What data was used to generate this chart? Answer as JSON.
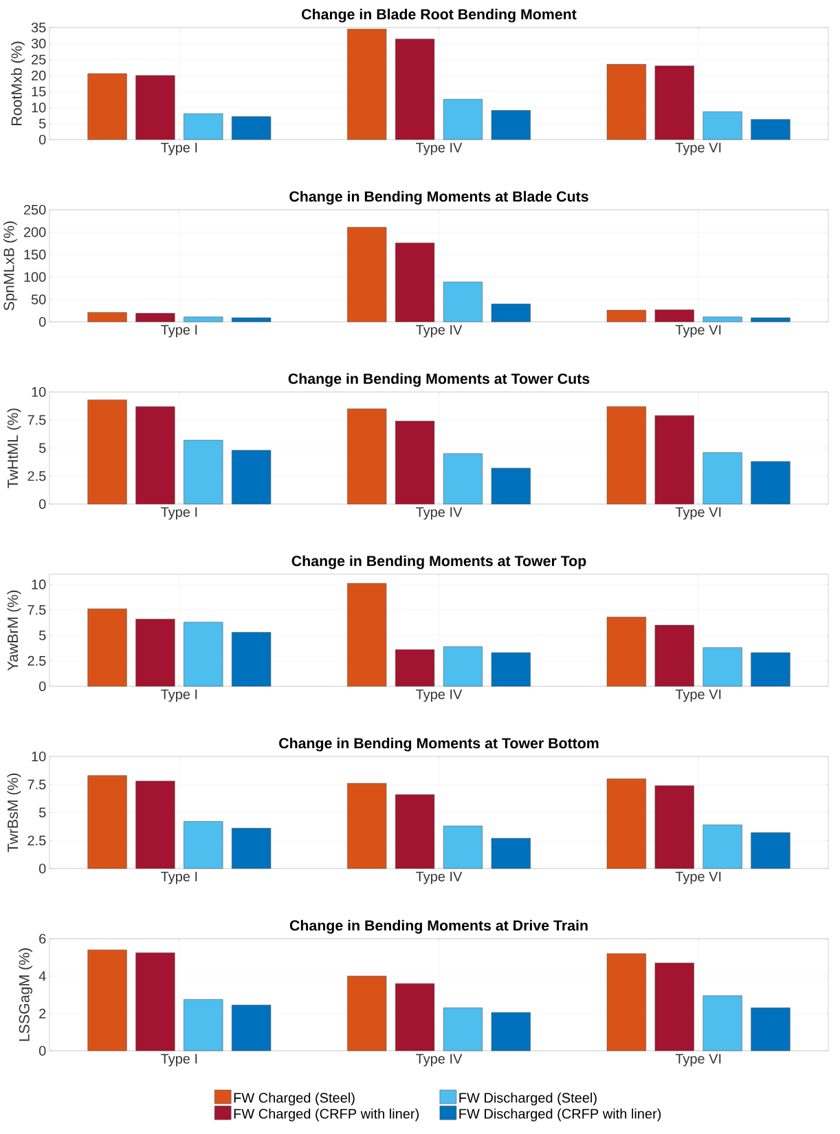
{
  "chart_data": [
    {
      "type": "bar",
      "title": "Change in Blade Root Bending Moment",
      "ylabel": "RootMxb (%)",
      "categories": [
        "Type I",
        "Type IV",
        "Type VI"
      ],
      "ylim": [
        0,
        35
      ],
      "yticks": [
        0,
        5,
        10,
        15,
        20,
        25,
        30,
        35
      ],
      "grid": true,
      "series": [
        {
          "color": "#d95319",
          "values": [
            20.6,
            34.5,
            23.5
          ]
        },
        {
          "color": "#a2142f",
          "values": [
            20.0,
            31.4,
            23.0
          ]
        },
        {
          "color": "#4dbeee",
          "values": [
            8.1,
            12.6,
            8.7
          ]
        },
        {
          "color": "#0072bd",
          "values": [
            7.2,
            9.1,
            6.3
          ]
        }
      ]
    },
    {
      "type": "bar",
      "title": "Change in Bending Moments at Blade Cuts",
      "ylabel": "SpnMLxB (%)",
      "categories": [
        "Type I",
        "Type IV",
        "Type VI"
      ],
      "ylim": [
        0,
        250
      ],
      "yticks": [
        0,
        50,
        100,
        150,
        200,
        250
      ],
      "grid": true,
      "series": [
        {
          "color": "#d95319",
          "values": [
            21,
            211,
            26
          ]
        },
        {
          "color": "#a2142f",
          "values": [
            19,
            176,
            27
          ]
        },
        {
          "color": "#4dbeee",
          "values": [
            11,
            89,
            11
          ]
        },
        {
          "color": "#0072bd",
          "values": [
            9,
            40,
            9
          ]
        }
      ]
    },
    {
      "type": "bar",
      "title": "Change in Bending Moments at Tower Cuts",
      "ylabel": "TwHtML (%)",
      "categories": [
        "Type I",
        "Type IV",
        "Type VI"
      ],
      "ylim": [
        0,
        10
      ],
      "yticks": [
        0,
        2.5,
        5,
        7.5,
        10
      ],
      "grid": true,
      "series": [
        {
          "color": "#d95319",
          "values": [
            9.3,
            8.5,
            8.7
          ]
        },
        {
          "color": "#a2142f",
          "values": [
            8.7,
            7.4,
            7.9
          ]
        },
        {
          "color": "#4dbeee",
          "values": [
            5.7,
            4.5,
            4.6
          ]
        },
        {
          "color": "#0072bd",
          "values": [
            4.8,
            3.2,
            3.8
          ]
        }
      ]
    },
    {
      "type": "bar",
      "title": "Change in Bending Moments at Tower Top",
      "ylabel": "YawBrM (%)",
      "categories": [
        "Type I",
        "Type IV",
        "Type VI"
      ],
      "ylim": [
        0,
        11
      ],
      "yticks": [
        0,
        2.5,
        5,
        7.5,
        10
      ],
      "grid": true,
      "series": [
        {
          "color": "#d95319",
          "values": [
            7.6,
            10.1,
            6.8
          ]
        },
        {
          "color": "#a2142f",
          "values": [
            6.6,
            3.6,
            6.0
          ]
        },
        {
          "color": "#4dbeee",
          "values": [
            6.3,
            3.9,
            3.8
          ]
        },
        {
          "color": "#0072bd",
          "values": [
            5.3,
            3.3,
            3.3
          ]
        }
      ]
    },
    {
      "type": "bar",
      "title": "Change in Bending Moments at Tower Bottom",
      "ylabel": "TwrBsM (%)",
      "categories": [
        "Type I",
        "Type IV",
        "Type VI"
      ],
      "ylim": [
        0,
        10
      ],
      "yticks": [
        0,
        2.5,
        5,
        7.5,
        10
      ],
      "grid": true,
      "series": [
        {
          "color": "#d95319",
          "values": [
            8.3,
            7.6,
            8.0
          ]
        },
        {
          "color": "#a2142f",
          "values": [
            7.8,
            6.6,
            7.4
          ]
        },
        {
          "color": "#4dbeee",
          "values": [
            4.2,
            3.8,
            3.9
          ]
        },
        {
          "color": "#0072bd",
          "values": [
            3.6,
            2.7,
            3.2
          ]
        }
      ]
    },
    {
      "type": "bar",
      "title": "Change in Bending Moments at Drive Train",
      "ylabel": "LSSGagM (%)",
      "categories": [
        "Type I",
        "Type IV",
        "Type VI"
      ],
      "ylim": [
        0,
        6
      ],
      "yticks": [
        0,
        2,
        4,
        6
      ],
      "grid": true,
      "legend": "bottom",
      "series": [
        {
          "name": "FW Charged (Steel)",
          "color": "#d95319",
          "values": [
            5.4,
            4.0,
            5.2
          ]
        },
        {
          "name": "FW Charged (CRFP with liner)",
          "color": "#a2142f",
          "values": [
            5.25,
            3.6,
            4.7
          ]
        },
        {
          "name": "FW Discharged (Steel)",
          "color": "#4dbeee",
          "values": [
            2.75,
            2.3,
            2.95
          ]
        },
        {
          "name": "FW Discharged (CRFP with liner)",
          "color": "#0072bd",
          "values": [
            2.45,
            2.05,
            2.3
          ]
        }
      ]
    }
  ]
}
